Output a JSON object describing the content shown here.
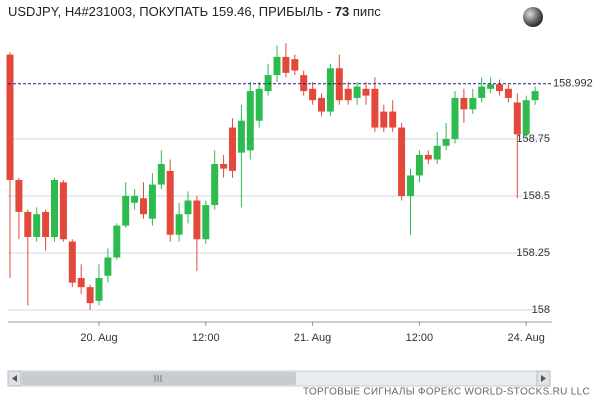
{
  "chart_data": {
    "type": "candlestick",
    "title": {
      "prefix": "USDJPY, H4#231003, ПОКУПАТЬ 159.46, ПРИБЫЛЬ - ",
      "bold": "73",
      "suffix": " пипс"
    },
    "footer": "ТОРГОВЫЕ СИГНАЛЫ ФОРЕКС WORLD-STOCKS.RU LLC",
    "categories": [
      null,
      null,
      null,
      null,
      null,
      null,
      null,
      null,
      null,
      null,
      "20. Aug",
      null,
      null,
      null,
      null,
      null,
      null,
      null,
      null,
      null,
      null,
      null,
      "12:00",
      null,
      null,
      null,
      null,
      null,
      null,
      null,
      null,
      null,
      null,
      null,
      "21. Aug",
      null,
      null,
      null,
      null,
      null,
      null,
      null,
      null,
      null,
      null,
      null,
      "12:00",
      null,
      null,
      null,
      null,
      null,
      null,
      null,
      null,
      null,
      null,
      null,
      "24. Aug",
      null
    ],
    "open": [
      159.12,
      158.57,
      158.43,
      158.32,
      158.43,
      158.32,
      158.56,
      158.3,
      158.14,
      158.1,
      158.04,
      158.15,
      158.23,
      158.37,
      158.47,
      158.49,
      158.4,
      158.55,
      158.61,
      158.33,
      158.42,
      158.48,
      158.31,
      158.46,
      158.64,
      158.8,
      158.69,
      158.7,
      158.83,
      158.96,
      159.03,
      159.11,
      159.1,
      159.03,
      158.97,
      158.93,
      158.87,
      159.06,
      158.97,
      158.93,
      158.97,
      158.97,
      158.87,
      158.87,
      158.8,
      158.5,
      158.59,
      158.68,
      158.66,
      158.72,
      158.75,
      158.93,
      158.88,
      158.93,
      158.97,
      158.99,
      158.97,
      158.91,
      158.77,
      158.92
    ],
    "high": [
      159.13,
      158.58,
      158.44,
      158.45,
      158.44,
      158.58,
      158.57,
      158.31,
      158.2,
      158.11,
      158.2,
      158.27,
      158.38,
      158.56,
      158.53,
      158.56,
      158.6,
      158.7,
      158.66,
      158.47,
      158.52,
      158.5,
      158.48,
      158.7,
      158.68,
      158.84,
      158.9,
      159.0,
      159.0,
      159.08,
      159.16,
      159.17,
      159.12,
      159.05,
      159.0,
      158.95,
      159.08,
      159.12,
      159.0,
      159.0,
      159.0,
      159.02,
      158.9,
      158.92,
      158.82,
      158.62,
      158.7,
      158.7,
      158.78,
      158.82,
      158.96,
      158.97,
      158.97,
      159.02,
      159.02,
      159.01,
      158.99,
      158.95,
      158.94,
      158.98
    ],
    "low": [
      158.14,
      158.31,
      158.02,
      158.3,
      158.26,
      158.3,
      158.3,
      158.1,
      158.07,
      158.0,
      158.02,
      158.12,
      158.22,
      158.36,
      158.44,
      158.4,
      158.37,
      158.53,
      158.3,
      158.3,
      158.38,
      158.17,
      158.29,
      158.44,
      158.58,
      158.58,
      158.45,
      158.66,
      158.8,
      158.94,
      159.0,
      159.02,
      159.03,
      158.94,
      158.9,
      158.85,
      158.85,
      158.9,
      158.9,
      158.9,
      158.9,
      158.78,
      158.78,
      158.78,
      158.48,
      158.33,
      158.56,
      158.64,
      158.64,
      158.7,
      158.73,
      158.82,
      158.86,
      158.91,
      158.95,
      158.94,
      158.91,
      158.49,
      158.75,
      158.9
    ],
    "close": [
      158.57,
      158.43,
      158.32,
      158.42,
      158.32,
      158.57,
      158.31,
      158.12,
      158.1,
      158.03,
      158.14,
      158.23,
      158.37,
      158.5,
      158.5,
      158.42,
      158.55,
      158.64,
      158.33,
      158.42,
      158.48,
      158.31,
      158.46,
      158.64,
      158.62,
      158.61,
      158.83,
      158.96,
      158.97,
      159.03,
      159.11,
      159.04,
      159.05,
      158.96,
      158.92,
      158.87,
      159.06,
      158.92,
      158.92,
      158.98,
      158.94,
      158.8,
      158.8,
      158.8,
      158.5,
      158.59,
      158.68,
      158.66,
      158.72,
      158.75,
      158.93,
      158.88,
      158.93,
      158.98,
      158.99,
      158.96,
      158.93,
      158.77,
      158.92,
      158.96
    ],
    "up_color": "#2dbb4f",
    "down_color": "#e2493a",
    "ylim": [
      157.956,
      159.184
    ],
    "yticks": [
      158,
      158.25,
      158.5,
      158.75
    ],
    "grid": true,
    "current_price": 158.992,
    "current_price_color": "#1a1a8c"
  }
}
